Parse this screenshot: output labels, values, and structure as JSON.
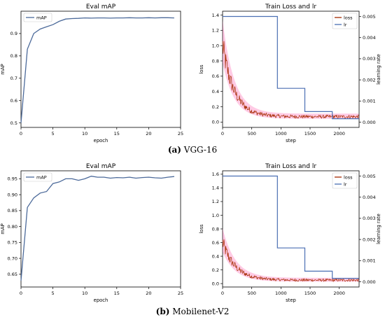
{
  "captions": {
    "a_letter": "(a)",
    "a_text": "VGG-16",
    "b_letter": "(b)",
    "b_text": "Mobilenet-V2"
  },
  "colors": {
    "map": "#4c6a9a",
    "lr": "#4b6fb3",
    "loss": "#a52a00",
    "loss_band": "#ff69b4"
  },
  "chart_data": [
    {
      "id": "a-map",
      "type": "line",
      "title": "Eval mAP",
      "xlabel": "epoch",
      "ylabel": "mAP",
      "xlim": [
        0,
        25
      ],
      "ylim": [
        0.48,
        1.0
      ],
      "xticks": [
        0,
        5,
        10,
        15,
        20,
        25
      ],
      "yticks": [
        0.5,
        0.6,
        0.7,
        0.8,
        0.9
      ],
      "legend": "top-left",
      "series": [
        {
          "name": "mAP",
          "x": [
            0,
            1,
            2,
            3,
            4,
            5,
            6,
            7,
            8,
            9,
            10,
            11,
            12,
            13,
            14,
            15,
            16,
            17,
            18,
            19,
            20,
            21,
            22,
            23,
            24
          ],
          "y": [
            0.5,
            0.83,
            0.9,
            0.92,
            0.93,
            0.94,
            0.955,
            0.965,
            0.967,
            0.968,
            0.97,
            0.969,
            0.97,
            0.97,
            0.969,
            0.97,
            0.97,
            0.971,
            0.97,
            0.97,
            0.971,
            0.97,
            0.971,
            0.971,
            0.97
          ]
        }
      ]
    },
    {
      "id": "a-loss",
      "type": "line",
      "title": "Train Loss and lr",
      "xlabel": "step",
      "ylabel": "loss",
      "y2label": "learning rate",
      "xlim": [
        0,
        2340
      ],
      "ylim": [
        -0.07,
        1.45
      ],
      "y2lim": [
        -0.00025,
        0.00525
      ],
      "xticks": [
        0,
        500,
        1000,
        1500,
        2000
      ],
      "yticks": [
        0.0,
        0.2,
        0.4,
        0.6,
        0.8,
        1.0,
        1.2,
        1.4
      ],
      "y2ticks": [
        "0.000",
        "0.001",
        "0.002",
        "0.003",
        "0.004",
        "0.005"
      ],
      "legend": "top-right",
      "loss": {
        "name": "loss",
        "steps": 2340,
        "start": 1.0,
        "end": 0.07,
        "decay": 200
      },
      "lr": {
        "name": "lr",
        "x": [
          0,
          940,
          940,
          1410,
          1410,
          1880,
          1880,
          2340
        ],
        "y": [
          0.005,
          0.005,
          0.0016,
          0.0016,
          0.0005,
          0.0005,
          0.00016,
          0.00016
        ]
      }
    },
    {
      "id": "b-map",
      "type": "line",
      "title": "Eval mAP",
      "xlabel": "epoch",
      "ylabel": "mAP",
      "xlim": [
        0,
        25
      ],
      "ylim": [
        0.61,
        0.975
      ],
      "xticks": [
        0,
        5,
        10,
        15,
        20,
        25
      ],
      "yticks": [
        0.65,
        0.7,
        0.75,
        0.8,
        0.85,
        0.9,
        0.95
      ],
      "legend": "top-left",
      "series": [
        {
          "name": "mAP",
          "x": [
            0,
            1,
            2,
            3,
            4,
            5,
            6,
            7,
            8,
            9,
            10,
            11,
            12,
            13,
            14,
            15,
            16,
            17,
            18,
            19,
            20,
            21,
            22,
            23,
            24
          ],
          "y": [
            0.63,
            0.86,
            0.89,
            0.905,
            0.91,
            0.935,
            0.94,
            0.95,
            0.95,
            0.945,
            0.95,
            0.958,
            0.955,
            0.955,
            0.952,
            0.954,
            0.953,
            0.955,
            0.952,
            0.954,
            0.955,
            0.953,
            0.952,
            0.955,
            0.957
          ]
        }
      ]
    },
    {
      "id": "b-loss",
      "type": "line",
      "title": "Train Loss and lr",
      "xlabel": "step",
      "ylabel": "loss",
      "y2label": "learning rate",
      "xlim": [
        0,
        2340
      ],
      "ylim": [
        -0.05,
        1.65
      ],
      "y2lim": [
        -0.00025,
        0.00525
      ],
      "xticks": [
        0,
        500,
        1000,
        1500,
        2000
      ],
      "yticks": [
        0.0,
        0.2,
        0.4,
        0.6,
        0.8,
        1.0,
        1.2,
        1.4,
        1.6
      ],
      "y2ticks": [
        "0.000",
        "0.001",
        "0.002",
        "0.003",
        "0.004",
        "0.005"
      ],
      "legend": "top-right",
      "loss": {
        "name": "loss",
        "steps": 2340,
        "start": 0.6,
        "end": 0.05,
        "decay": 220
      },
      "lr": {
        "name": "lr",
        "x": [
          0,
          940,
          940,
          1410,
          1410,
          1880,
          1880,
          2340
        ],
        "y": [
          0.005,
          0.005,
          0.0016,
          0.0016,
          0.0005,
          0.0005,
          0.00016,
          0.00016
        ]
      }
    }
  ]
}
